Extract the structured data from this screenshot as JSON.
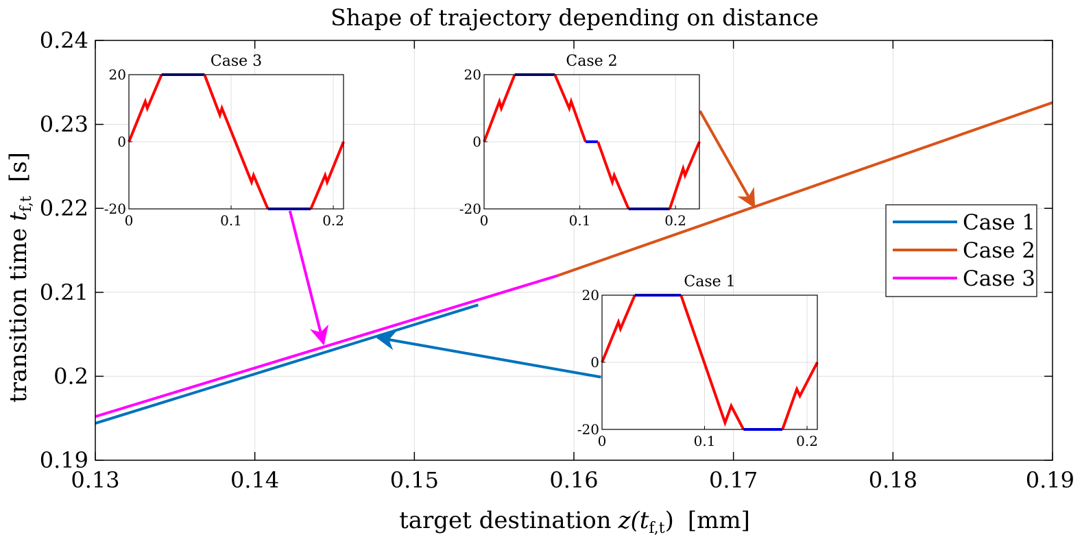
{
  "chart_data": {
    "type": "line",
    "title": "Shape of trajectory depending on distance",
    "xlabel": "target destination",
    "xlabel_math": "z(t",
    "xlabel_sub": "f,t",
    "xlabel_close": ")",
    "xlabel_unit": "[mm]",
    "ylabel": "transition time",
    "ylabel_math": "t",
    "ylabel_sub": "f,t",
    "ylabel_unit": "[s]",
    "xlim": [
      0.13,
      0.19
    ],
    "ylim": [
      0.19,
      0.24
    ],
    "xticks": [
      0.13,
      0.14,
      0.15,
      0.16,
      0.17,
      0.18,
      0.19
    ],
    "xtick_labels": [
      "0.13",
      "0.14",
      "0.15",
      "0.16",
      "0.17",
      "0.18",
      "0.19"
    ],
    "yticks": [
      0.19,
      0.2,
      0.21,
      0.22,
      0.23,
      0.24
    ],
    "ytick_labels": [
      "0.19",
      "0.2",
      "0.21",
      "0.22",
      "0.23",
      "0.24"
    ],
    "grid": true,
    "legend_position": "right",
    "series": [
      {
        "name": "Case 1",
        "color": "#0072BD",
        "x": [
          0.13,
          0.154
        ],
        "y": [
          0.1944,
          0.2085
        ]
      },
      {
        "name": "Case 2",
        "color": "#D95319",
        "x": [
          0.159,
          0.19
        ],
        "y": [
          0.212,
          0.2326
        ]
      },
      {
        "name": "Case 3",
        "color": "#FF00FF",
        "x": [
          0.13,
          0.159
        ],
        "y": [
          0.1952,
          0.212
        ]
      }
    ],
    "annotations": [
      {
        "label": "Case 1",
        "color": "#0072BD",
        "from": [
          0.1617,
          0.1999
        ],
        "to": [
          0.1477,
          0.2046
        ]
      },
      {
        "label": "Case 2",
        "color": "#D95319",
        "from": [
          0.1679,
          0.2316
        ],
        "to": [
          0.1713,
          0.2202
        ]
      },
      {
        "label": "Case 3",
        "color": "#FF00FF",
        "from": [
          0.1422,
          0.2197
        ],
        "to": [
          0.1443,
          0.2039
        ]
      }
    ],
    "insets": [
      {
        "title": "Case 3",
        "xlim": [
          0,
          0.21
        ],
        "ylim": [
          -20,
          20
        ],
        "xticks": [
          0,
          0.1,
          0.2
        ],
        "xtick_labels": [
          "0",
          "0.1",
          "0.2"
        ],
        "yticks": [
          -20,
          0,
          20
        ],
        "ytick_labels": [
          "-20",
          "0",
          "20"
        ],
        "segments": [
          {
            "color": "#FF0000",
            "points": [
              [
                0,
                0
              ],
              [
                0.016,
                12
              ],
              [
                0.018,
                10
              ],
              [
                0.032,
                20
              ]
            ]
          },
          {
            "color": "#0000FF",
            "points": [
              [
                0.032,
                20
              ],
              [
                0.074,
                20
              ]
            ]
          },
          {
            "color": "#FF0000",
            "points": [
              [
                0.074,
                20
              ],
              [
                0.089,
                8
              ],
              [
                0.091,
                10
              ],
              [
                0.12,
                -12
              ],
              [
                0.122,
                -10
              ],
              [
                0.136,
                -20
              ]
            ]
          },
          {
            "color": "#0000FF",
            "points": [
              [
                0.136,
                -20
              ],
              [
                0.178,
                -20
              ]
            ]
          },
          {
            "color": "#FF0000",
            "points": [
              [
                0.178,
                -20
              ],
              [
                0.192,
                -10
              ],
              [
                0.194,
                -12
              ],
              [
                0.21,
                0
              ]
            ]
          }
        ]
      },
      {
        "title": "Case 2",
        "xlim": [
          0,
          0.225
        ],
        "ylim": [
          -20,
          20
        ],
        "xticks": [
          0,
          0.1,
          0.2
        ],
        "xtick_labels": [
          "0",
          "0.1",
          "0.2"
        ],
        "yticks": [
          -20,
          0,
          20
        ],
        "ytick_labels": [
          "-20",
          "0",
          "20"
        ],
        "segments": [
          {
            "color": "#FF0000",
            "points": [
              [
                0,
                0
              ],
              [
                0.016,
                12
              ],
              [
                0.018,
                10
              ],
              [
                0.032,
                20
              ]
            ]
          },
          {
            "color": "#0000FF",
            "points": [
              [
                0.032,
                20
              ],
              [
                0.074,
                20
              ]
            ]
          },
          {
            "color": "#FF0000",
            "points": [
              [
                0.074,
                20
              ],
              [
                0.089,
                10
              ],
              [
                0.091,
                12
              ],
              [
                0.106,
                0
              ]
            ]
          },
          {
            "color": "#0000FF",
            "points": [
              [
                0.106,
                0
              ],
              [
                0.119,
                0
              ]
            ]
          },
          {
            "color": "#FF0000",
            "points": [
              [
                0.119,
                0
              ],
              [
                0.134,
                -12
              ],
              [
                0.136,
                -10
              ],
              [
                0.151,
                -20
              ]
            ]
          },
          {
            "color": "#0000FF",
            "points": [
              [
                0.151,
                -20
              ],
              [
                0.194,
                -20
              ]
            ]
          },
          {
            "color": "#FF0000",
            "points": [
              [
                0.194,
                -20
              ],
              [
                0.208,
                -8
              ],
              [
                0.21,
                -10
              ],
              [
                0.225,
                0
              ]
            ]
          }
        ]
      },
      {
        "title": "Case 1",
        "xlim": [
          0,
          0.21
        ],
        "ylim": [
          -20,
          20
        ],
        "xticks": [
          0,
          0.1,
          0.2
        ],
        "xtick_labels": [
          "0",
          "0.1",
          "0.2"
        ],
        "yticks": [
          -20,
          0,
          20
        ],
        "ytick_labels": [
          "-20",
          "0",
          "20"
        ],
        "segments": [
          {
            "color": "#FF0000",
            "points": [
              [
                0,
                0
              ],
              [
                0.016,
                12
              ],
              [
                0.018,
                10
              ],
              [
                0.032,
                20
              ]
            ]
          },
          {
            "color": "#0000FF",
            "points": [
              [
                0.032,
                20
              ],
              [
                0.077,
                20
              ]
            ]
          },
          {
            "color": "#FF0000",
            "points": [
              [
                0.077,
                20
              ],
              [
                0.12,
                -18
              ],
              [
                0.126,
                -13
              ],
              [
                0.138,
                -20
              ]
            ]
          },
          {
            "color": "#0000FF",
            "points": [
              [
                0.138,
                -20
              ],
              [
                0.176,
                -20
              ]
            ]
          },
          {
            "color": "#FF0000",
            "points": [
              [
                0.176,
                -20
              ],
              [
                0.19,
                -8
              ],
              [
                0.193,
                -10
              ],
              [
                0.21,
                0
              ]
            ]
          }
        ]
      }
    ]
  }
}
